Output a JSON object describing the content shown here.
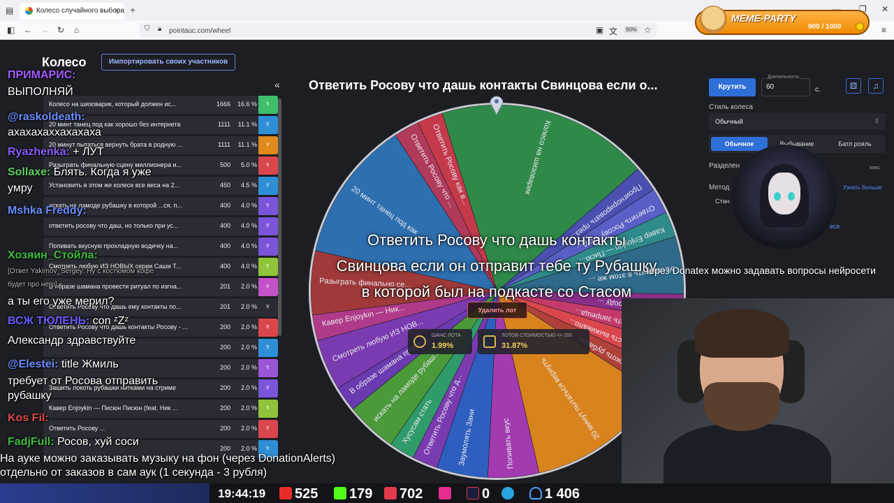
{
  "browser": {
    "tab_title": "Колесо случайного выбора – П",
    "url": "pointauc.com/wheel",
    "zoom": "90%"
  },
  "memeparty": {
    "logo": "MEME-PARTY",
    "count": "900 / 1000"
  },
  "app": {
    "title": "Колесо",
    "import_button": "Импортировать своих участников",
    "collapse": "«"
  },
  "lots": [
    {
      "name": "Колесо на шизоварик, который должен ис...",
      "value": "1666",
      "percent": "16.6 %",
      "color": "#3fbf6a"
    },
    {
      "name": "20 минт танец под как хорошо без интернета",
      "value": "1111",
      "percent": "11.1 %",
      "color": "#2e8fd6"
    },
    {
      "name": "20 минут пытаться вернуть брата в родную ...",
      "value": "1111",
      "percent": "11.1 %",
      "color": "#e08a1e"
    },
    {
      "name": "Разыграть финальную сцену миллионера и...",
      "value": "500",
      "percent": "5.0 %",
      "color": "#d9474d"
    },
    {
      "name": "Установить в этом же колесе все веса на 2...",
      "value": "450",
      "percent": "4.5 %",
      "color": "#2e8fd6"
    },
    {
      "name": "искать на ламоде рубашку в которой ...ся, п...",
      "value": "400",
      "percent": "4.0 %",
      "color": "#7a55d9"
    },
    {
      "name": "ответить росову что даш, но только при ус...",
      "value": "400",
      "percent": "4.0 %",
      "color": "#7a55d9"
    },
    {
      "name": "Попивать вкусную прохладную водичку на...",
      "value": "400",
      "percent": "4.0 %",
      "color": "#7a55d9"
    },
    {
      "name": "Смотреть любую ИЗ НОВЫХ серии Саши Т...",
      "value": "400",
      "percent": "4.0 %",
      "color": "#8fc43a"
    },
    {
      "name": "В образе шамана провести ритуал по изгна...",
      "value": "201",
      "percent": "2.0 %",
      "color": "#c452c8"
    },
    {
      "name": "Ответить Росову что дашь ему контакты по...",
      "value": "201",
      "percent": "2.0 %",
      "color": "#2a2b33"
    },
    {
      "name": "Ответить Росову что дашь контакты Росову - ...",
      "value": "200",
      "percent": "2.0 %",
      "color": "#d9474d"
    },
    {
      "name": "",
      "value": "200",
      "percent": "2.0 %",
      "color": "#2e8fd6"
    },
    {
      "name": "",
      "value": "200",
      "percent": "2.0 %",
      "color": "#9a55d9"
    },
    {
      "name": "Зашить локоть рубашки нитками на стриме",
      "value": "200",
      "percent": "2.0 %",
      "color": "#7a55d9"
    },
    {
      "name": "Кавер Enjoykin — Писюн Писюн (feat. Ник ...",
      "value": "200",
      "percent": "2.0 %",
      "color": "#8fc43a"
    },
    {
      "name": "Ответить Росову ...",
      "value": "200",
      "percent": "2.0 %",
      "color": "#d9474d"
    },
    {
      "name": "",
      "value": "200",
      "percent": "2.0 %",
      "color": "#2e8fd6"
    }
  ],
  "wheel": {
    "title": "Ответить Росову что дашь контакты Свинцова если о...",
    "selected_line1": "Ответить Росову что дашь контакты",
    "selected_line2": "Свинцова если он отправит тебе ту Рубашку",
    "selected_line3": "в которой был на подкасте со Стасом",
    "delete_button": "Удалить лот",
    "chance_label": "ШАНС ЛОТА",
    "chance_value": "1.99%",
    "lots_cost_label": "ЛОТОВ СТОИМОСТЬЮ <= 200",
    "lots_cost_value": "31.87%",
    "segments": [
      {
        "label": "Колесо на шизоварик",
        "color": "#2f8a4a",
        "share": 0.166
      },
      {
        "label": "Проигнорировать през...",
        "color": "#4a4fb0",
        "share": 0.02
      },
      {
        "label": "Ответить Росову что д...",
        "color": "#5a5fc8",
        "share": 0.02
      },
      {
        "label": "Кавер Enjoykin — Писю...",
        "color": "#2f8a8a",
        "share": 0.02
      },
      {
        "label": "Установить в этом же ...",
        "color": "#2f6a8a",
        "share": 0.045
      },
      {
        "label": "Погулять по городу ...",
        "color": "#8a2f8a",
        "share": 0.02
      },
      {
        "label": "Запретить спать запреща...",
        "color": "#c43a6a",
        "share": 0.02
      },
      {
        "label": "Посидеть часть выживало...",
        "color": "#d9474d",
        "share": 0.02
      },
      {
        "label": "Зашить локоть рубашки",
        "color": "#b0413a",
        "share": 0.02
      },
      {
        "label": "20 минут пытаться вернуть",
        "color": "#d9831e",
        "share": 0.111
      },
      {
        "label": "Попивать вкус",
        "color": "#a23ab0",
        "share": 0.04
      },
      {
        "label": "Заумолять Зани",
        "color": "#2e5fc0",
        "share": 0.04
      },
      {
        "label": "Ответить Росову что д...",
        "color": "#7a3ab0",
        "share": 0.02
      },
      {
        "label": "Хусусам стать",
        "color": "#2f9a6a",
        "share": 0.02
      },
      {
        "label": "искать на ламоде рубаш...",
        "color": "#4a9a3a",
        "share": 0.04
      },
      {
        "label": "В образе шамана прове...",
        "color": "#6a3ab0",
        "share": 0.02
      },
      {
        "label": "Смотреть любую ИЗ НОВ...",
        "color": "#7a3ab0",
        "share": 0.04
      },
      {
        "label": "Кавер Enjoykin — Ник...",
        "color": "#b03a8a",
        "share": 0.02
      },
      {
        "label": "Разыграть финально се...",
        "color": "#a03a3a",
        "share": 0.05
      },
      {
        "label": "20 минт танец под как ...",
        "color": "#2e6fb0",
        "share": 0.111
      },
      {
        "label": "Ответить Росову что ...",
        "color": "#b03a5a",
        "share": 0.02
      },
      {
        "label": "Ответить Росову как в...",
        "color": "#c43a4a",
        "share": 0.02
      }
    ]
  },
  "controls": {
    "spin_button": "Крутить",
    "duration_label": "Длительность",
    "duration_value": "60",
    "seconds": "с.",
    "style_label": "Стиль колеса",
    "style_value": "Обычный",
    "mode_normal": "Обычное",
    "mode_elimination": "Выбывание",
    "mode_battle": "Батл рояль",
    "split_label": "Разделен",
    "max_label": "макс",
    "method_label": "Метод",
    "method_value": "Стан",
    "learn_more": "Узнать больше",
    "more_link": "есе"
  },
  "overlay": {
    "donatex": "Через Donatex можно задавать вопросы нейросети",
    "ticker_line1": "На ауке можно заказывать музыку на фон (через DonationAlerts)",
    "ticker_line2": "отдельно от заказов в сам аук (1 секунда - 3 рубля)"
  },
  "chat": [
    {
      "nick": "ПРИМАРИС:",
      "text": "",
      "nick_color": "#a45bff",
      "top": 42
    },
    {
      "nick": "",
      "text": "ВЫПОЛНЯЙ",
      "nick_color": "#fff",
      "top": 66
    },
    {
      "nick": "@raskoldeath:",
      "text": "",
      "nick_color": "#6b8cff",
      "top": 102
    },
    {
      "nick": "",
      "text": "ахахахаххахахаха",
      "nick_color": "#fff",
      "top": 124
    },
    {
      "nick": "Ryazhenka:",
      "text": " + ЛУТ",
      "nick_color": "#8a5cff",
      "top": 152
    },
    {
      "nick": "Sollaxe:",
      "text": " Блять. Когда я уже",
      "nick_color": "#5fd35f",
      "top": 181
    },
    {
      "nick": "",
      "text": "умру",
      "nick_color": "#fff",
      "top": 204
    },
    {
      "nick": "Mshka Freddy:",
      "text": "",
      "nick_color": "#6b8cff",
      "top": 236
    },
    {
      "nick": "Хозяин_Стойла:",
      "text": "",
      "nick_color": "#3fbf3f",
      "top": 300
    },
    {
      "nick": "",
      "text": "а ты его уже мерил?",
      "nick_color": "#fff",
      "top": 366
    },
    {
      "nick": "ВСЖ ТЮЛЕНЬ:",
      "text": " con ᶻZᶻ",
      "nick_color": "#6b5cff",
      "top": 394
    },
    {
      "nick": "",
      "text": "Александр здравствуйте",
      "nick_color": "#fff",
      "top": 422
    },
    {
      "nick": "@Elestei:",
      "text": " title Жмиль",
      "nick_color": "#6b8cff",
      "top": 456
    },
    {
      "nick": "",
      "text": "требует от Росова отправить",
      "nick_color": "#fff",
      "top": 480
    },
    {
      "nick": "",
      "text": "рубашку",
      "nick_color": "#fff",
      "top": 501
    },
    {
      "nick": "Kos Fil:",
      "text": "",
      "nick_color": "#e04a4a",
      "top": 533
    },
    {
      "nick": "FadjFull:",
      "text": " Росов, хуй соси",
      "nick_color": "#3fbf3f",
      "top": 567
    }
  ],
  "chat_quote": {
    "line1": "[Ответ Yakimov_Sergey: Ну с костюмом кофе",
    "line2": "будет про него]"
  },
  "stats": {
    "time": "19:44:19",
    "youtube": "525",
    "kick": "179",
    "vk": "702",
    "rutube": "0",
    "telegram": "",
    "viewers": "1 406"
  }
}
